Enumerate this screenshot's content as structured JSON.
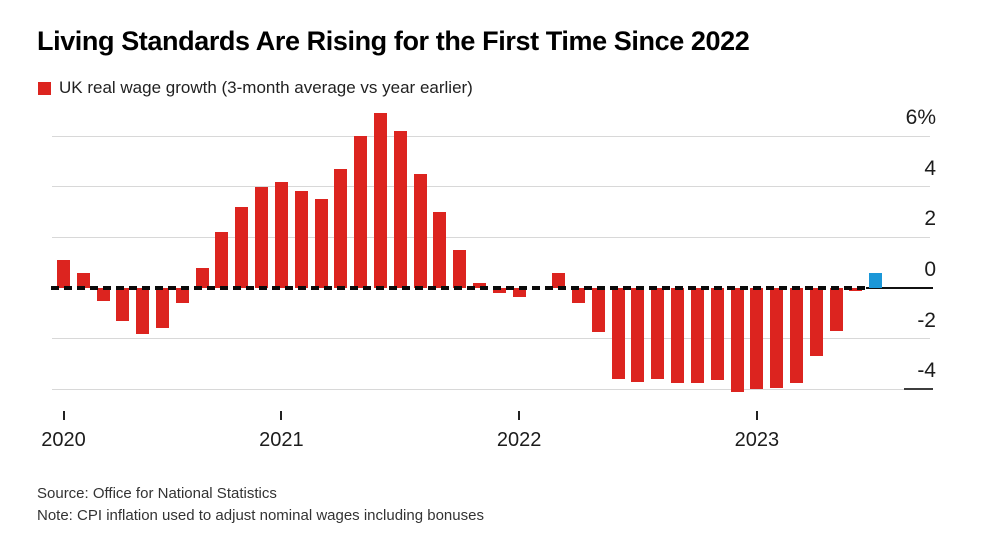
{
  "header": {
    "title": "Living Standards Are Rising for the First Time Since 2022",
    "legend_label": "UK real wage growth (3-month average vs year earlier)"
  },
  "footer": {
    "source": "Source: Office for National Statistics",
    "note": "Note: CPI inflation used to adjust nominal wages including bonuses"
  },
  "chart_data": {
    "type": "bar",
    "title": "Living Standards Are Rising for the First Time Since 2022",
    "series_name": "UK real wage growth (3-month average vs year earlier)",
    "unit": "%",
    "categories": [
      "Feb 2020",
      "Mar 2020",
      "Apr 2020",
      "May 2020",
      "Jun 2020",
      "Jul 2020",
      "Aug 2020",
      "Sep 2020",
      "Oct 2020",
      "Nov 2020",
      "Dec 2020",
      "Jan 2021",
      "Feb 2021",
      "Mar 2021",
      "Apr 2021",
      "May 2021",
      "Jun 2021",
      "Jul 2021",
      "Aug 2021",
      "Sep 2021",
      "Oct 2021",
      "Nov 2021",
      "Dec 2021",
      "Jan 2022",
      "Feb 2022",
      "Mar 2022",
      "Apr 2022",
      "May 2022",
      "Jun 2022",
      "Jul 2022",
      "Aug 2022",
      "Sep 2022",
      "Oct 2022",
      "Nov 2022",
      "Dec 2022",
      "Jan 2023",
      "Feb 2023",
      "Mar 2023",
      "Apr 2023",
      "May 2023",
      "Jun 2023",
      "Jul 2023"
    ],
    "values": [
      1.1,
      0.6,
      -0.5,
      -1.3,
      -1.8,
      -1.6,
      -0.6,
      0.8,
      2.2,
      3.2,
      4.0,
      4.2,
      3.85,
      3.5,
      4.7,
      6.0,
      6.9,
      6.2,
      4.5,
      3.0,
      1.5,
      0.2,
      -0.2,
      -0.35,
      0.0,
      0.6,
      -0.6,
      -1.75,
      -3.6,
      -3.7,
      -3.6,
      -3.75,
      -3.75,
      -3.65,
      -4.1,
      -4.0,
      -3.95,
      -3.75,
      -2.7,
      -1.7,
      -0.1,
      0.6
    ],
    "highlight_index": 41,
    "colors": {
      "bar_default": "#dc241f",
      "bar_highlight": "#1b97d8",
      "gridline": "#d8d8d8",
      "zero_line": "#0a0a0a"
    },
    "y_axis": {
      "ticks": [
        {
          "label": "6%",
          "value": 6
        },
        {
          "label": "4",
          "value": 4
        },
        {
          "label": "2",
          "value": 2
        },
        {
          "label": "0",
          "value": 0
        },
        {
          "label": "-2",
          "value": -2
        },
        {
          "label": "-4",
          "value": -4
        }
      ],
      "range": [
        -4.7,
        7.3
      ],
      "grid": true,
      "zero_line_style": "dashed"
    },
    "x_axis": {
      "ticks": [
        {
          "label": "2020",
          "index": 0
        },
        {
          "label": "2021",
          "index": 11
        },
        {
          "label": "2022",
          "index": 23
        },
        {
          "label": "2023",
          "index": 35
        }
      ]
    },
    "legend_position": "top-left"
  }
}
